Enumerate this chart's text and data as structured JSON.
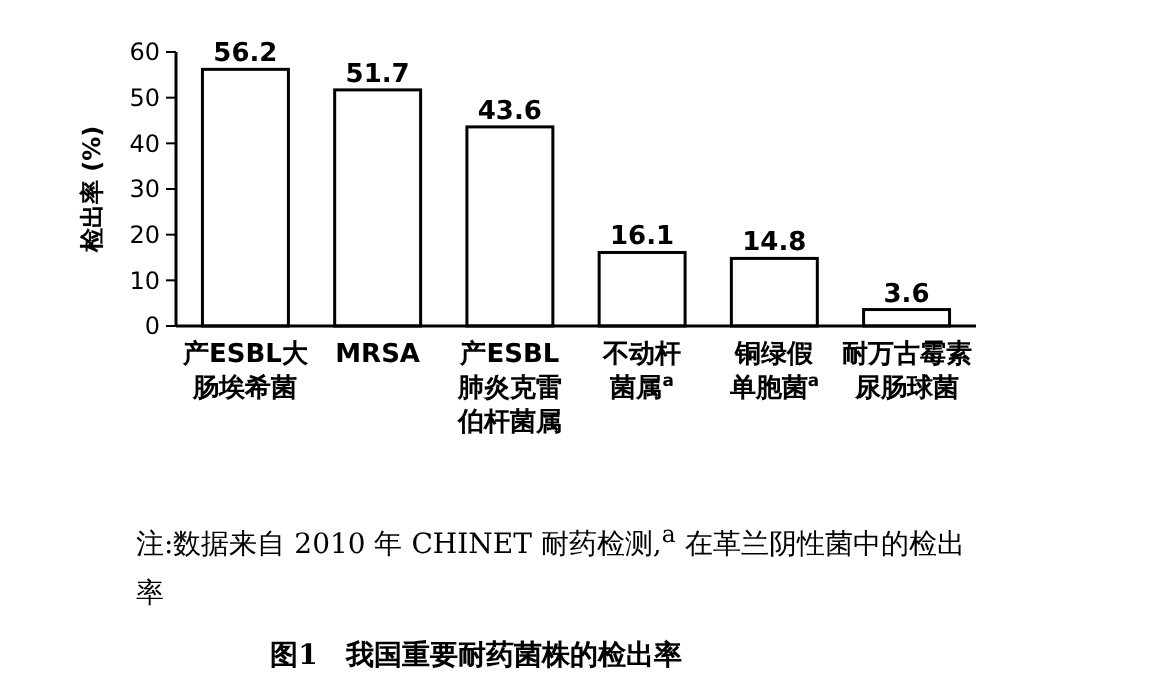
{
  "chart_data": {
    "type": "bar",
    "title": "图1　我国重要耐药菌株的检出率",
    "ylabel": "检出率 (%)",
    "categories": [
      "产ESBL大肠埃希菌",
      "MRSA",
      "产ESBL肺炎克雷伯杆菌属",
      "不动杆菌属$^{a}$",
      "铜绿假单胞菌$^{a}$",
      "耐万古霉素尿肠球菌"
    ],
    "values": [
      56.2,
      51.7,
      43.6,
      16.1,
      14.8,
      3.6
    ],
    "color": "#ffffff",
    "ylim": [
      0,
      60
    ],
    "yticks": [
      0,
      10,
      20,
      30,
      40,
      50,
      60
    ],
    "grid": false,
    "data_labels": true,
    "annotations": [
      "注:数据来自 2010 年 CHINET 耐药检测,$^{a}$ 在革兰阴性菌中的检出率"
    ]
  }
}
